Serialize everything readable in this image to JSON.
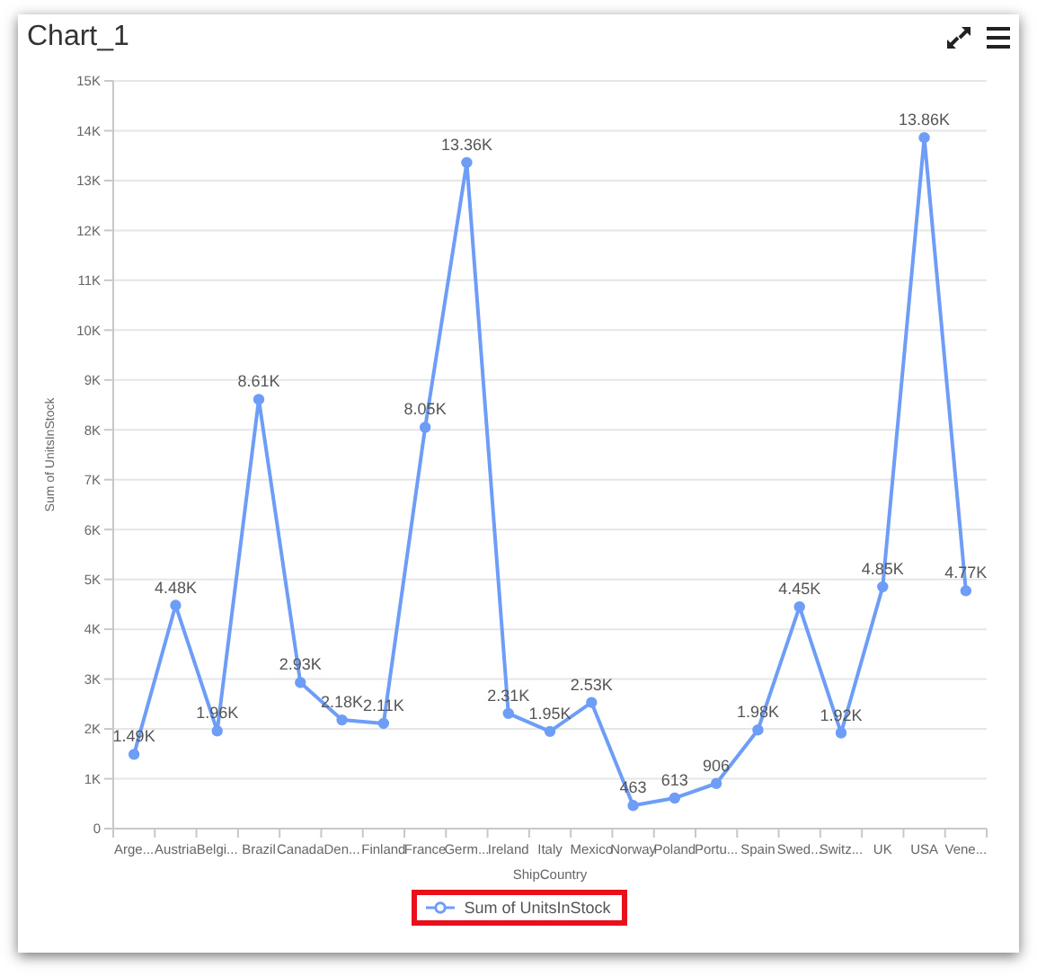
{
  "chart_data": {
    "type": "line",
    "title": "Chart_1",
    "xlabel": "ShipCountry",
    "ylabel": "Sum of UnitsInStock",
    "categories": [
      "Arge...",
      "Austria",
      "Belgi...",
      "Brazil",
      "Canada",
      "Den...",
      "Finland",
      "France",
      "Germ...",
      "Ireland",
      "Italy",
      "Mexico",
      "Norway",
      "Poland",
      "Portu...",
      "Spain",
      "Swed...",
      "Switz...",
      "UK",
      "USA",
      "Vene..."
    ],
    "series": [
      {
        "name": "Sum of UnitsInStock",
        "color": "#6d9df7",
        "values": [
          1490,
          4480,
          1960,
          8610,
          2930,
          2180,
          2110,
          8050,
          13360,
          2310,
          1950,
          2530,
          463,
          613,
          906,
          1980,
          4450,
          1920,
          4850,
          13860,
          4770
        ],
        "value_labels": [
          "1.49K",
          "4.48K",
          "1.96K",
          "8.61K",
          "2.93K",
          "2.18K",
          "2.11K",
          "8.05K",
          "13.36K",
          "2.31K",
          "1.95K",
          "2.53K",
          "463",
          "613",
          "906",
          "1.98K",
          "4.45K",
          "1.92K",
          "4.85K",
          "13.86K",
          "4.77K"
        ]
      }
    ],
    "ylim": [
      0,
      15000
    ],
    "yticks": [
      0,
      {
        "value": 1000,
        "label": "1K"
      },
      {
        "value": 2000,
        "label": "2K"
      },
      {
        "value": 3000,
        "label": "3K"
      },
      {
        "value": 4000,
        "label": "4K"
      },
      {
        "value": 5000,
        "label": "5K"
      },
      {
        "value": 6000,
        "label": "6K"
      },
      {
        "value": 7000,
        "label": "7K"
      },
      {
        "value": 8000,
        "label": "8K"
      },
      {
        "value": 9000,
        "label": "9K"
      },
      {
        "value": 10000,
        "label": "10K"
      },
      {
        "value": 11000,
        "label": "11K"
      },
      {
        "value": 12000,
        "label": "12K"
      },
      {
        "value": 13000,
        "label": "13K"
      },
      {
        "value": 14000,
        "label": "14K"
      },
      {
        "value": 15000,
        "label": "15K"
      }
    ],
    "grid": "y",
    "legend": "bottom",
    "marker": "circle",
    "line_style": "solid"
  }
}
